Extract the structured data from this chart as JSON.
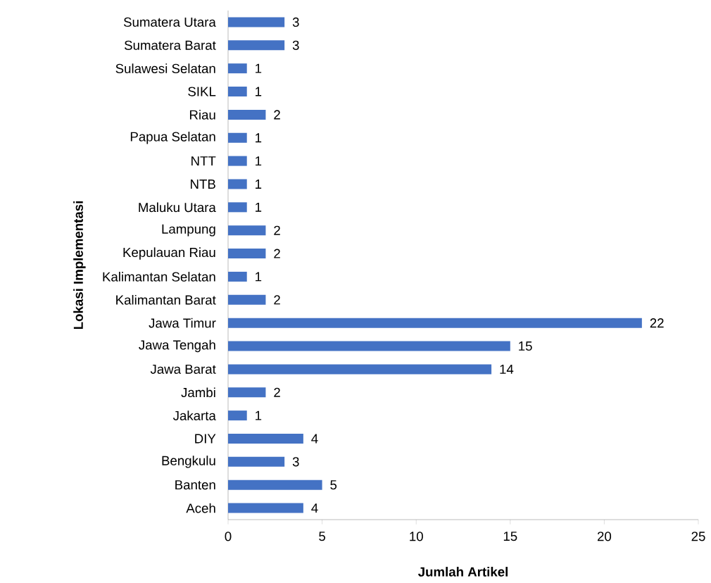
{
  "chart_data": {
    "type": "bar",
    "orientation": "horizontal",
    "xlabel": "Jumlah Artikel",
    "ylabel": "Lokasi Implementasi",
    "categories": [
      "Sumatera Utara",
      "Sumatera Barat",
      "Sulawesi Selatan",
      "SIKL",
      "Riau",
      "Papua Selatan",
      "NTT",
      "NTB",
      "Maluku Utara",
      "Lampung",
      "Kepulauan Riau",
      "Kalimantan Selatan",
      "Kalimantan Barat",
      "Jawa Timur",
      "Jawa Tengah",
      "Jawa Barat",
      "Jambi",
      "Jakarta",
      "DIY",
      "Bengkulu",
      "Banten",
      "Aceh"
    ],
    "values": [
      3,
      3,
      1,
      1,
      2,
      1,
      1,
      1,
      1,
      2,
      2,
      1,
      2,
      22,
      15,
      14,
      2,
      1,
      4,
      3,
      5,
      4
    ],
    "color": "#4472c4",
    "xlim": [
      0,
      25
    ],
    "xticks": [
      0,
      5,
      10,
      15,
      20,
      25
    ],
    "data_labels": true,
    "grid": false
  }
}
